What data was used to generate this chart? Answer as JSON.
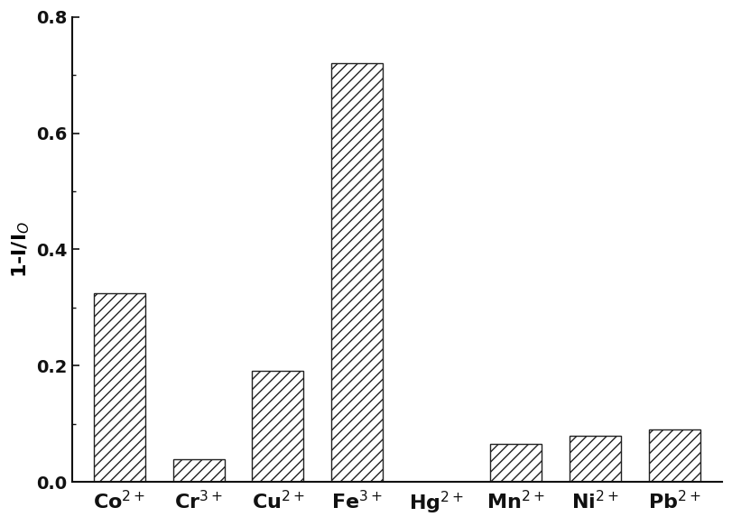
{
  "categories_base": [
    "Co",
    "Cr",
    "Cu",
    "Fe",
    "Hg",
    "Mn",
    "Ni",
    "Pb"
  ],
  "categories_sup": [
    "2+",
    "3+",
    "2+",
    "3+",
    "2+",
    "2+",
    "2+",
    "2+"
  ],
  "values": [
    0.325,
    0.04,
    0.192,
    0.72,
    0.0,
    0.065,
    0.08,
    0.09
  ],
  "ylabel": "1-I/I$_O$",
  "ylim": [
    0.0,
    0.8
  ],
  "yticks": [
    0.0,
    0.2,
    0.4,
    0.6,
    0.8
  ],
  "ytick_minor": [
    0.1,
    0.3,
    0.5,
    0.7
  ],
  "bar_color": "white",
  "bar_edgecolor": "#222222",
  "hatch": "///",
  "figsize": [
    8.11,
    5.83
  ],
  "dpi": 100,
  "bar_width": 0.65,
  "spine_color": "#111111",
  "tick_color": "#111111",
  "label_fontsize": 16,
  "tick_fontsize": 14,
  "xlabel_fontsize": 16
}
